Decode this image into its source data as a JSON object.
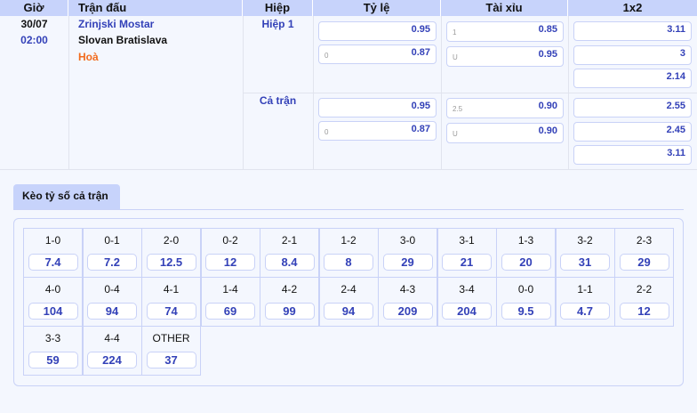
{
  "header": {
    "time": "Giờ",
    "match": "Trận đấu",
    "half": "Hiệp",
    "handicap": "Tỷ lệ",
    "overunder": "Tài xỉu",
    "x12": "1x2"
  },
  "match": {
    "date": "30/07",
    "time": "02:00",
    "home": "Zrinjski Mostar",
    "away": "Slovan Bratislava",
    "draw": "Hoà"
  },
  "periods": [
    {
      "label": "Hiệp 1",
      "handicap": [
        {
          "line": "",
          "odd": "0.95"
        },
        {
          "line": "0",
          "odd": "0.87"
        }
      ],
      "overunder": [
        {
          "line": "1",
          "odd": "0.85"
        },
        {
          "line": "U",
          "odd": "0.95"
        }
      ],
      "x12": [
        "3.11",
        "3",
        "2.14"
      ]
    },
    {
      "label": "Cả trận",
      "handicap": [
        {
          "line": "",
          "odd": "0.95"
        },
        {
          "line": "0",
          "odd": "0.87"
        }
      ],
      "overunder": [
        {
          "line": "2.5",
          "odd": "0.90"
        },
        {
          "line": "U",
          "odd": "0.90"
        }
      ],
      "x12": [
        "2.55",
        "2.45",
        "3.11"
      ]
    }
  ],
  "score_tab": "Kèo tỷ số cả trận",
  "scores": [
    {
      "s": "1-0",
      "o": "7.4"
    },
    {
      "s": "0-1",
      "o": "7.2"
    },
    {
      "s": "2-0",
      "o": "12.5"
    },
    {
      "s": "0-2",
      "o": "12"
    },
    {
      "s": "2-1",
      "o": "8.4"
    },
    {
      "s": "1-2",
      "o": "8"
    },
    {
      "s": "3-0",
      "o": "29"
    },
    {
      "s": "3-1",
      "o": "21"
    },
    {
      "s": "1-3",
      "o": "20"
    },
    {
      "s": "3-2",
      "o": "31"
    },
    {
      "s": "2-3",
      "o": "29"
    },
    {
      "s": "4-0",
      "o": "104"
    },
    {
      "s": "0-4",
      "o": "94"
    },
    {
      "s": "4-1",
      "o": "74"
    },
    {
      "s": "1-4",
      "o": "69"
    },
    {
      "s": "4-2",
      "o": "99"
    },
    {
      "s": "2-4",
      "o": "94"
    },
    {
      "s": "4-3",
      "o": "209"
    },
    {
      "s": "3-4",
      "o": "204"
    },
    {
      "s": "0-0",
      "o": "9.5"
    },
    {
      "s": "1-1",
      "o": "4.7"
    },
    {
      "s": "2-2",
      "o": "12"
    },
    {
      "s": "3-3",
      "o": "59"
    },
    {
      "s": "4-4",
      "o": "224"
    },
    {
      "s": "OTHER",
      "o": "37"
    }
  ]
}
